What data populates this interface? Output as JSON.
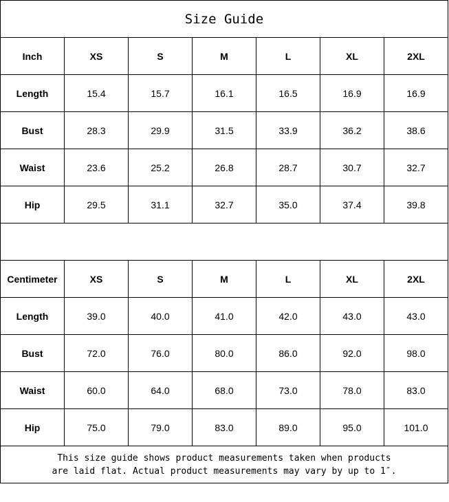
{
  "title": "Size Guide",
  "sizes": [
    "XS",
    "S",
    "M",
    "L",
    "XL",
    "2XL"
  ],
  "inch": {
    "unit_label": "Inch",
    "rows": [
      {
        "label": "Length",
        "values": [
          "15.4",
          "15.7",
          "16.1",
          "16.5",
          "16.9",
          "16.9"
        ]
      },
      {
        "label": "Bust",
        "values": [
          "28.3",
          "29.9",
          "31.5",
          "33.9",
          "36.2",
          "38.6"
        ]
      },
      {
        "label": "Waist",
        "values": [
          "23.6",
          "25.2",
          "26.8",
          "28.7",
          "30.7",
          "32.7"
        ]
      },
      {
        "label": "Hip",
        "values": [
          "29.5",
          "31.1",
          "32.7",
          "35.0",
          "37.4",
          "39.8"
        ]
      }
    ]
  },
  "centimeter": {
    "unit_label": "Centimeter",
    "rows": [
      {
        "label": "Length",
        "values": [
          "39.0",
          "40.0",
          "41.0",
          "42.0",
          "43.0",
          "43.0"
        ]
      },
      {
        "label": "Bust",
        "values": [
          "72.0",
          "76.0",
          "80.0",
          "86.0",
          "92.0",
          "98.0"
        ]
      },
      {
        "label": "Waist",
        "values": [
          "60.0",
          "64.0",
          "68.0",
          "73.0",
          "78.0",
          "83.0"
        ]
      },
      {
        "label": "Hip",
        "values": [
          "75.0",
          "79.0",
          "83.0",
          "89.0",
          "95.0",
          "101.0"
        ]
      }
    ]
  },
  "note_line1": "This size guide shows product measurements taken when products",
  "note_line2": "are laid flat. Actual product measurements may vary by up to 1″."
}
